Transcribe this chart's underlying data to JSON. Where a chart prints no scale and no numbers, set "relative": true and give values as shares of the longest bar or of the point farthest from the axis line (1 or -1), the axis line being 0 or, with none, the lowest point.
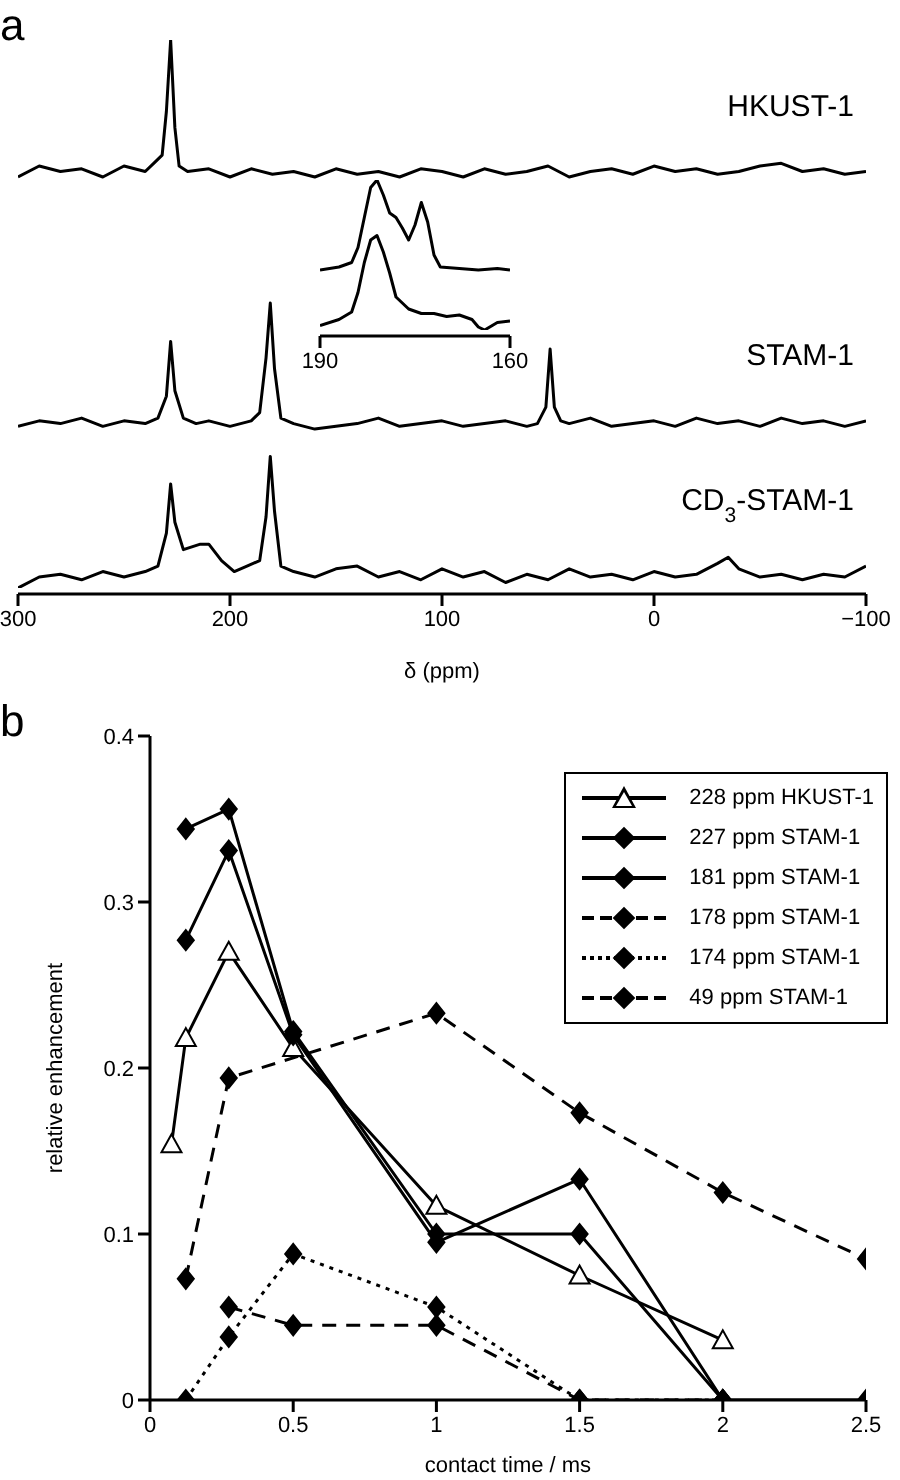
{
  "chart_data": [
    {
      "type": "line",
      "title": "a",
      "relative": true,
      "xlabel": "δ (ppm)",
      "xlim": [
        300,
        -100
      ],
      "xticks": [
        300,
        200,
        100,
        0,
        {
          "value": -100,
          "label": "−100"
        }
      ],
      "tick_labels": "x",
      "marker": "none",
      "line_style": "solid",
      "series": [
        {
          "name": "HKUST-1",
          "color": "#000000",
          "x": [
            300,
            290,
            280,
            270,
            260,
            250,
            240,
            236,
            232,
            230,
            228,
            226,
            224,
            220,
            210,
            200,
            190,
            180,
            170,
            160,
            150,
            140,
            130,
            120,
            110,
            100,
            90,
            80,
            70,
            60,
            50,
            40,
            30,
            20,
            10,
            0,
            -10,
            -20,
            -30,
            -40,
            -50,
            -60,
            -70,
            -80,
            -90,
            -100
          ],
          "values": [
            0.75,
            0.77,
            0.76,
            0.765,
            0.75,
            0.77,
            0.76,
            0.775,
            0.79,
            0.87,
            1.0,
            0.84,
            0.77,
            0.76,
            0.765,
            0.75,
            0.765,
            0.755,
            0.76,
            0.75,
            0.765,
            0.755,
            0.76,
            0.75,
            0.765,
            0.76,
            0.75,
            0.765,
            0.755,
            0.76,
            0.77,
            0.75,
            0.76,
            0.765,
            0.755,
            0.77,
            0.76,
            0.765,
            0.755,
            0.76,
            0.77,
            0.775,
            0.76,
            0.765,
            0.755,
            0.76
          ]
        },
        {
          "name": "STAM-1",
          "color": "#000000",
          "x": [
            300,
            290,
            280,
            270,
            260,
            250,
            240,
            234,
            230,
            228,
            226,
            222,
            216,
            210,
            200,
            190,
            186,
            183,
            181,
            179,
            176,
            170,
            160,
            150,
            140,
            130,
            120,
            110,
            100,
            90,
            80,
            70,
            60,
            55,
            51,
            49,
            47,
            44,
            40,
            30,
            20,
            10,
            0,
            -10,
            -20,
            -30,
            -40,
            -50,
            -60,
            -70,
            -80,
            -90,
            -100
          ],
          "values": [
            0.295,
            0.305,
            0.3,
            0.31,
            0.295,
            0.305,
            0.3,
            0.31,
            0.35,
            0.45,
            0.36,
            0.31,
            0.3,
            0.305,
            0.295,
            0.305,
            0.32,
            0.42,
            0.52,
            0.4,
            0.31,
            0.3,
            0.29,
            0.295,
            0.3,
            0.31,
            0.295,
            0.3,
            0.305,
            0.295,
            0.3,
            0.305,
            0.295,
            0.3,
            0.33,
            0.436,
            0.33,
            0.305,
            0.3,
            0.31,
            0.295,
            0.3,
            0.305,
            0.295,
            0.31,
            0.3,
            0.305,
            0.295,
            0.31,
            0.3,
            0.305,
            0.295,
            0.305
          ]
        },
        {
          "name": "CD$_{3}$-STAM-1",
          "color": "#000000",
          "x": [
            300,
            290,
            280,
            270,
            260,
            250,
            240,
            234,
            230,
            228,
            226,
            222,
            214,
            210,
            204,
            198,
            192,
            186,
            183,
            181,
            179,
            176,
            170,
            160,
            150,
            140,
            130,
            120,
            110,
            100,
            90,
            80,
            70,
            60,
            50,
            40,
            30,
            20,
            10,
            0,
            -10,
            -20,
            -30,
            -35,
            -40,
            -50,
            -60,
            -70,
            -80,
            -90,
            -100
          ],
          "values": [
            0.0,
            0.02,
            0.025,
            0.015,
            0.03,
            0.02,
            0.03,
            0.04,
            0.1,
            0.19,
            0.12,
            0.07,
            0.08,
            0.08,
            0.05,
            0.03,
            0.04,
            0.05,
            0.13,
            0.24,
            0.14,
            0.04,
            0.03,
            0.02,
            0.035,
            0.04,
            0.02,
            0.03,
            0.015,
            0.035,
            0.02,
            0.03,
            0.01,
            0.025,
            0.015,
            0.035,
            0.02,
            0.025,
            0.015,
            0.03,
            0.02,
            0.025,
            0.045,
            0.056,
            0.035,
            0.02,
            0.025,
            0.015,
            0.025,
            0.02,
            0.04
          ]
        }
      ]
    },
    {
      "type": "line",
      "relative": true,
      "xlim": [
        190,
        160
      ],
      "xticks": [
        190,
        160
      ],
      "tick_labels": "x",
      "marker": "none",
      "line_style": "solid",
      "series": [
        {
          "color": "#000000",
          "x": [
            190,
            187,
            185,
            184,
            183,
            182,
            181,
            180,
            179,
            178,
            177,
            176,
            175,
            174,
            173,
            172,
            171,
            168,
            165,
            162,
            160
          ],
          "values": [
            0.4,
            0.42,
            0.45,
            0.55,
            0.75,
            0.95,
            1.0,
            0.9,
            0.78,
            0.75,
            0.68,
            0.6,
            0.7,
            0.85,
            0.72,
            0.5,
            0.42,
            0.41,
            0.4,
            0.41,
            0.4
          ]
        },
        {
          "color": "#000000",
          "x": [
            190,
            187,
            185,
            184,
            183,
            182,
            181,
            180,
            179,
            178,
            176,
            174,
            172,
            170,
            168,
            166,
            165,
            164,
            162,
            160
          ],
          "values": [
            0.03,
            0.07,
            0.12,
            0.25,
            0.45,
            0.6,
            0.63,
            0.52,
            0.38,
            0.22,
            0.14,
            0.11,
            0.11,
            0.09,
            0.1,
            0.07,
            0.02,
            0.0,
            0.05,
            0.06
          ]
        }
      ]
    },
    {
      "type": "line",
      "title": "b",
      "xlabel": "contact time / ms",
      "ylabel": "relative enhancement",
      "xlim": [
        0,
        2.5
      ],
      "xticks": [
        0,
        0.5,
        1,
        1.5,
        2,
        2.5
      ],
      "ylim": [
        0,
        0.4
      ],
      "yticks": [
        0,
        0.1,
        0.2,
        0.3,
        0.4
      ],
      "legend": "top right",
      "series": [
        {
          "name": "228 ppm HKUST-1",
          "color": "#000000",
          "marker": "triangle",
          "line_style": "solid",
          "x": [
            0.075,
            0.125,
            0.275,
            0.5,
            1,
            1.5,
            2
          ],
          "values": [
            0.154,
            0.218,
            0.27,
            0.212,
            0.117,
            0.075,
            0.036
          ]
        },
        {
          "name": "227 ppm STAM-1",
          "color": "#000000",
          "marker": "diamond",
          "line_style": "solid",
          "x": [
            0.125,
            0.275,
            0.5,
            1,
            1.5,
            2,
            2.5
          ],
          "values": [
            0.277,
            0.331,
            0.22,
            0.095,
            0.133,
            0,
            0
          ]
        },
        {
          "name": "181 ppm STAM-1",
          "color": "#000000",
          "marker": "diamond",
          "line_style": "solid",
          "x": [
            0.125,
            0.275,
            0.5,
            1,
            1.5,
            2
          ],
          "values": [
            0.344,
            0.356,
            0.222,
            0.1,
            0.1,
            0
          ]
        },
        {
          "name": "178 ppm STAM-1",
          "color": "#000000",
          "marker": "diamond",
          "line_style": "dashed",
          "x": [
            0.275,
            0.5,
            1,
            1.5,
            2
          ],
          "values": [
            0.056,
            0.045,
            0.045,
            0,
            0
          ]
        },
        {
          "name": "174 ppm STAM-1",
          "color": "#000000",
          "marker": "diamond",
          "line_style": "dotted",
          "x": [
            0.125,
            0.275,
            0.5,
            1,
            1.5,
            2
          ],
          "values": [
            0,
            0.038,
            0.088,
            0.056,
            0,
            0
          ]
        },
        {
          "name": "49 ppm STAM-1",
          "color": "#000000",
          "marker": "diamond",
          "line_style": "dashed",
          "x": [
            0.125,
            0.275,
            1,
            1.5,
            2,
            2.5
          ],
          "values": [
            0.073,
            0.194,
            0.233,
            0.173,
            0.125,
            0.085
          ]
        }
      ]
    }
  ]
}
